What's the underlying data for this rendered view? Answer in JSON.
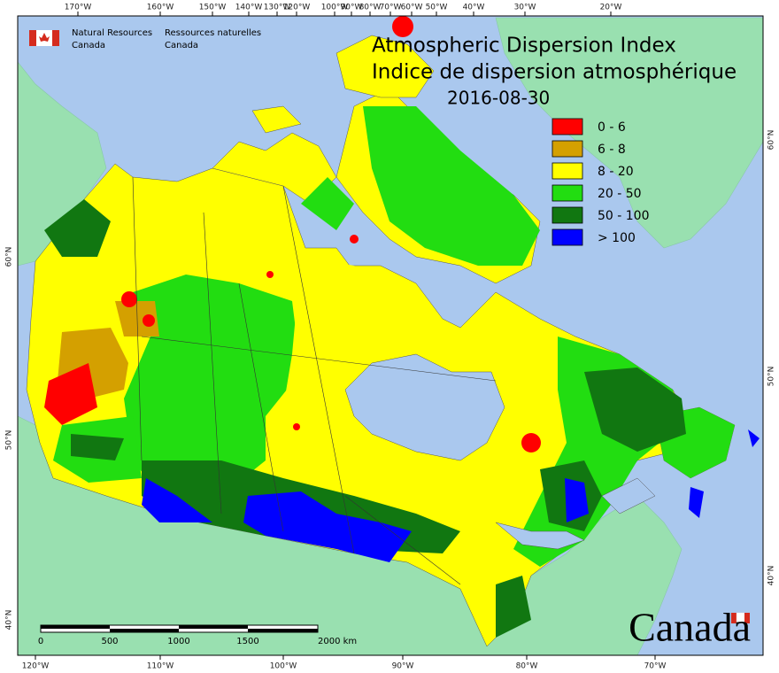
{
  "header": {
    "agency_en": [
      "Natural Resources",
      "Canada"
    ],
    "agency_fr": [
      "Ressources naturelles",
      "Canada"
    ]
  },
  "title": [
    "Atmospheric Dispersion Index",
    "Indice de dispersion atmosphérique"
  ],
  "date": "2016-08-30",
  "legend": [
    {
      "label": "0 - 6",
      "color": "#ff0000"
    },
    {
      "label": "6 - 8",
      "color": "#d4a000"
    },
    {
      "label": "8 - 20",
      "color": "#ffff00"
    },
    {
      "label": "20 - 50",
      "color": "#22dd11"
    },
    {
      "label": "50 - 100",
      "color": "#117711"
    },
    {
      "label": "> 100",
      "color": "#0000ff"
    }
  ],
  "top_axis": [
    "170°W",
    "160°W",
    "150°W",
    "140°W",
    "130°W",
    "120°W",
    "100°W",
    "90°W",
    "80°W",
    "70°W",
    "60°W",
    "50°W",
    "40°W",
    "30°W",
    "20°W"
  ],
  "bottom_axis": [
    "120°W",
    "110°W",
    "100°W",
    "90°W",
    "80°W",
    "70°W"
  ],
  "left_axis": [
    "60°N",
    "50°N",
    "40°N"
  ],
  "right_axis": [
    "60°N",
    "50°N",
    "40°N"
  ],
  "scale_bar": [
    "0",
    "500",
    "1000",
    "1500",
    "2000 km"
  ],
  "wordmark": "Canada"
}
